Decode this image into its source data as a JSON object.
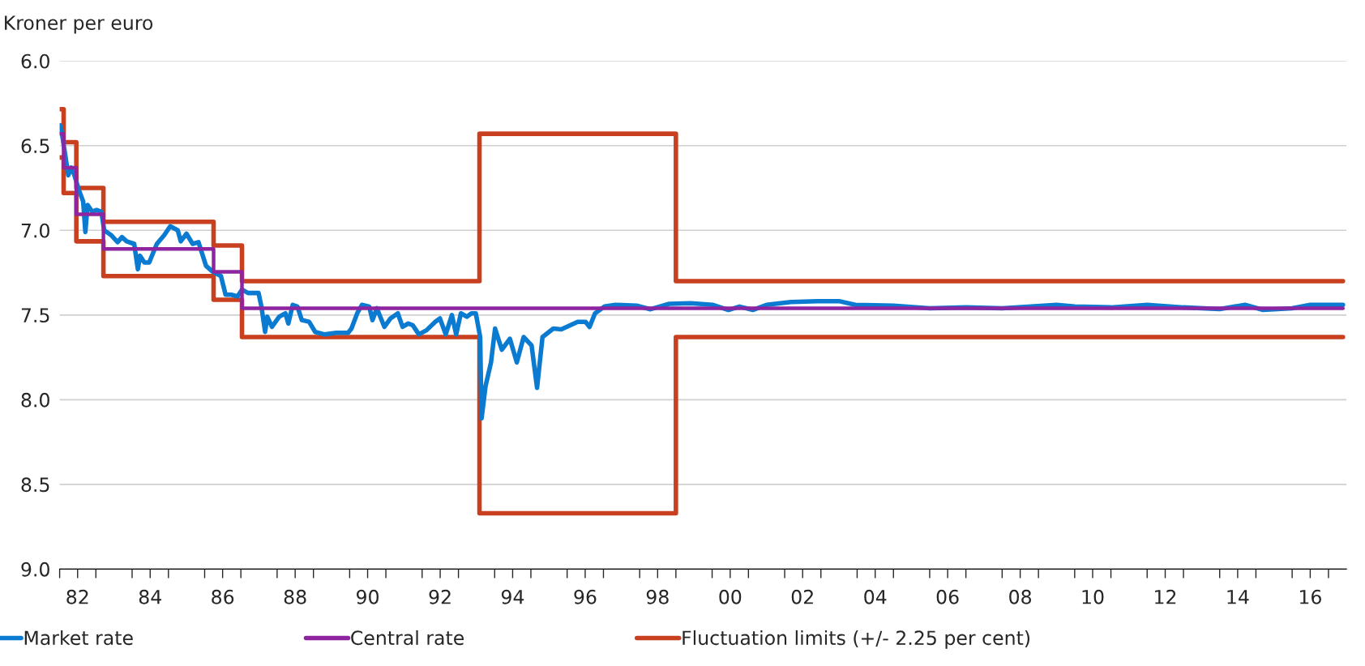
{
  "chart_data": {
    "type": "line",
    "ylabel": "Kroner per euro",
    "series": [
      {
        "name": "Market rate",
        "color": "#0a7bd0",
        "x": [
          "1982-01-05",
          "1982-01-19",
          "1982-02-25",
          "1982-03-29",
          "1982-04-27",
          "1982-05-27",
          "1982-07-13",
          "1982-08-26",
          "1982-09-17",
          "1982-10-09",
          "1982-11-25",
          "1983-01-08",
          "1983-02-25",
          "1983-03-26",
          "1983-06-07",
          "1983-08-08",
          "1983-09-21",
          "1983-11-07",
          "1984-01-22",
          "1984-02-28",
          "1984-03-21",
          "1984-05-04",
          "1984-06-21",
          "1984-09-06",
          "1984-11-18",
          "1985-01-19",
          "1985-04-05",
          "1985-05-05",
          "1985-07-02",
          "1985-09-02",
          "1985-10-31",
          "1986-01-15",
          "1986-03-14",
          "1986-06-14",
          "1986-07-31",
          "1986-09-27",
          "1986-11-28",
          "1987-01-12",
          "1987-03-14",
          "1987-06-28",
          "1987-07-27",
          "1987-09-02",
          "1987-09-24",
          "1987-11-10",
          "1988-01-22",
          "1988-03-25",
          "1988-04-23",
          "1988-06-06",
          "1988-07-24",
          "1988-09-06",
          "1988-11-18",
          "1989-01-19",
          "1989-04-20",
          "1989-08-19",
          "1989-12-17",
          "1990-01-19",
          "1990-03-18",
          "1990-05-05",
          "1990-07-17",
          "1990-08-19",
          "1990-10-02",
          "1990-12-17",
          "1991-02-17",
          "1991-05-01",
          "1991-06-18",
          "1991-08-15",
          "1991-09-28",
          "1991-11-29",
          "1992-02-14",
          "1992-05-12",
          "1992-06-28",
          "1992-08-26",
          "1992-10-27",
          "1992-12-09",
          "1993-01-26",
          "1993-03-26",
          "1993-05-12",
          "1993-06-25",
          "1993-08-08",
          "1993-08-22",
          "1993-10-01",
          "1993-11-25",
          "1994-01-05",
          "1994-03-14",
          "1994-06-03",
          "1994-08-12",
          "1994-10-20",
          "1995-01-08",
          "1995-03-04",
          "1995-04-28",
          "1995-08-15",
          "1995-11-03",
          "1996-04-16",
          "1996-07-05",
          "1996-08-14",
          "1996-10-08",
          "1997-01-12",
          "1997-05-01",
          "1997-12-02",
          "1998-04-20",
          "1998-10-27",
          "1999-05-31",
          "2000-01-05",
          "2000-06-14",
          "2000-10-02",
          "2001-02-14",
          "2001-07-02",
          "2002-03-04",
          "2002-11-28",
          "2003-07-02",
          "2003-12-14",
          "2005-01-01",
          "2006-01-01",
          "2007-01-01",
          "2008-01-01",
          "2008-10-20",
          "2009-07-02",
          "2010-01-01",
          "2011-01-01",
          "2012-01-01",
          "2013-01-01",
          "2014-01-01",
          "2014-09-13",
          "2015-03-14",
          "2016-01-01",
          "2016-07-02",
          "2017-05-27"
        ],
        "values": [
          6.38,
          6.41,
          6.55,
          6.675,
          6.63,
          6.67,
          6.76,
          6.83,
          7.01,
          6.85,
          6.89,
          6.88,
          6.89,
          7.0,
          7.03,
          7.07,
          7.04,
          7.065,
          7.08,
          7.23,
          7.15,
          7.19,
          7.19,
          7.08,
          7.03,
          6.976,
          7.0,
          7.065,
          7.02,
          7.08,
          7.07,
          7.21,
          7.24,
          7.27,
          7.38,
          7.38,
          7.39,
          7.35,
          7.37,
          7.37,
          7.45,
          7.6,
          7.51,
          7.57,
          7.51,
          7.49,
          7.55,
          7.44,
          7.45,
          7.53,
          7.54,
          7.6,
          7.614,
          7.605,
          7.605,
          7.58,
          7.49,
          7.44,
          7.45,
          7.53,
          7.46,
          7.57,
          7.52,
          7.49,
          7.57,
          7.55,
          7.56,
          7.614,
          7.59,
          7.54,
          7.52,
          7.614,
          7.5,
          7.614,
          7.49,
          7.51,
          7.49,
          7.49,
          7.63,
          8.11,
          7.92,
          7.78,
          7.58,
          7.705,
          7.64,
          7.78,
          7.63,
          7.68,
          7.93,
          7.63,
          7.58,
          7.585,
          7.54,
          7.54,
          7.57,
          7.49,
          7.45,
          7.44,
          7.445,
          7.466,
          7.434,
          7.43,
          7.44,
          7.47,
          7.45,
          7.47,
          7.44,
          7.423,
          7.418,
          7.418,
          7.44,
          7.445,
          7.46,
          7.455,
          7.46,
          7.45,
          7.44,
          7.45,
          7.455,
          7.44,
          7.455,
          7.465,
          7.44,
          7.47,
          7.46,
          7.44,
          7.44
        ]
      },
      {
        "name": "Central rate",
        "color": "#8e24a0",
        "type": "step",
        "x": [
          "1982-01-01",
          "1982-02-10",
          "1982-06-18",
          "1983-03-18",
          "1986-04-01",
          "1987-01-12",
          "2017-05-27"
        ],
        "values": [
          6.43,
          6.63,
          6.905,
          7.11,
          7.245,
          7.46,
          7.46
        ]
      },
      {
        "name": "Fluctuation limits (+/- 2.25 per cent)",
        "color": "#c8401f",
        "type": "step",
        "x": [
          "1982-01-01",
          "1982-02-10",
          "1982-06-18",
          "1983-03-18",
          "1986-04-01",
          "1987-01-12",
          "1993-08-01",
          "1999-01-01",
          "2017-05-27"
        ],
        "values": [
          6.285,
          6.48,
          6.75,
          6.95,
          7.09,
          7.3,
          6.43,
          7.3,
          7.3
        ]
      },
      {
        "color": "#c8401f",
        "type": "step",
        "x": [
          "1982-01-01",
          "1982-02-10",
          "1982-06-18",
          "1983-03-18",
          "1986-04-01",
          "1987-01-12",
          "1993-08-01",
          "1999-01-01",
          "2017-05-27"
        ],
        "values": [
          6.57,
          6.78,
          7.065,
          7.27,
          7.41,
          7.63,
          8.67,
          7.63,
          7.63
        ]
      }
    ],
    "xlim": [
      "1982-01-01",
      "2017-07-01"
    ],
    "xticks": [
      {
        "value": "1982-01-01",
        "label": null
      },
      {
        "value": "1983-01-01",
        "label": null
      },
      {
        "value": "1984-01-01",
        "label": null
      },
      {
        "value": "1985-01-01",
        "label": null
      },
      {
        "value": "1986-01-01",
        "label": null
      },
      {
        "value": "1987-01-01",
        "label": null
      },
      {
        "value": "1988-01-01",
        "label": null
      },
      {
        "value": "1989-01-01",
        "label": null
      },
      {
        "value": "1990-01-01",
        "label": null
      },
      {
        "value": "1991-01-01",
        "label": null
      },
      {
        "value": "1992-01-01",
        "label": null
      },
      {
        "value": "1993-01-01",
        "label": null
      },
      {
        "value": "1994-01-01",
        "label": null
      },
      {
        "value": "1995-01-01",
        "label": null
      },
      {
        "value": "1996-01-01",
        "label": null
      },
      {
        "value": "1997-01-01",
        "label": null
      },
      {
        "value": "1998-01-01",
        "label": null
      },
      {
        "value": "1999-01-01",
        "label": null
      },
      {
        "value": "2000-01-01",
        "label": null
      },
      {
        "value": "2001-01-01",
        "label": null
      },
      {
        "value": "2002-01-01",
        "label": null
      },
      {
        "value": "2003-01-01",
        "label": null
      },
      {
        "value": "2004-01-01",
        "label": null
      },
      {
        "value": "2005-01-01",
        "label": null
      },
      {
        "value": "2006-01-01",
        "label": null
      },
      {
        "value": "2007-01-01",
        "label": null
      },
      {
        "value": "2008-01-01",
        "label": null
      },
      {
        "value": "2009-01-01",
        "label": null
      },
      {
        "value": "2010-01-01",
        "label": null
      },
      {
        "value": "2011-01-01",
        "label": null
      },
      {
        "value": "2012-01-01",
        "label": null
      },
      {
        "value": "2013-01-01",
        "label": null
      },
      {
        "value": "2014-01-01",
        "label": null
      },
      {
        "value": "2015-01-01",
        "label": null
      },
      {
        "value": "2016-01-01",
        "label": null
      },
      {
        "value": "2017-01-01",
        "label": null
      },
      {
        "value": "1982-07-01",
        "label": "82"
      },
      {
        "value": "1984-07-01",
        "label": "84"
      },
      {
        "value": "1986-07-01",
        "label": "86"
      },
      {
        "value": "1988-07-01",
        "label": "88"
      },
      {
        "value": "1990-07-01",
        "label": "90"
      },
      {
        "value": "1992-07-01",
        "label": "92"
      },
      {
        "value": "1994-07-01",
        "label": "94"
      },
      {
        "value": "1996-07-01",
        "label": "96"
      },
      {
        "value": "1998-07-01",
        "label": "98"
      },
      {
        "value": "2000-07-01",
        "label": "00"
      },
      {
        "value": "2002-07-01",
        "label": "02"
      },
      {
        "value": "2004-07-01",
        "label": "04"
      },
      {
        "value": "2006-07-01",
        "label": "06"
      },
      {
        "value": "2008-07-01",
        "label": "08"
      },
      {
        "value": "2010-07-01",
        "label": "10"
      },
      {
        "value": "2012-07-01",
        "label": "12"
      },
      {
        "value": "2014-07-01",
        "label": "14"
      },
      {
        "value": "2016-07-01",
        "label": "16"
      }
    ],
    "ylim": [
      9.0,
      6.0
    ],
    "yticks": [
      {
        "value": 6,
        "label": "6.0"
      },
      {
        "value": 6.5,
        "label": "6.5"
      },
      {
        "value": 7,
        "label": "7.0"
      },
      {
        "value": 7.5,
        "label": "7.5"
      },
      {
        "value": 8,
        "label": "8.0"
      },
      {
        "value": 8.5,
        "label": "8.5"
      },
      {
        "value": 9,
        "label": "9.0"
      }
    ],
    "grid": "y",
    "legend": "bottom",
    "line_style": "solid",
    "marker": "none"
  }
}
